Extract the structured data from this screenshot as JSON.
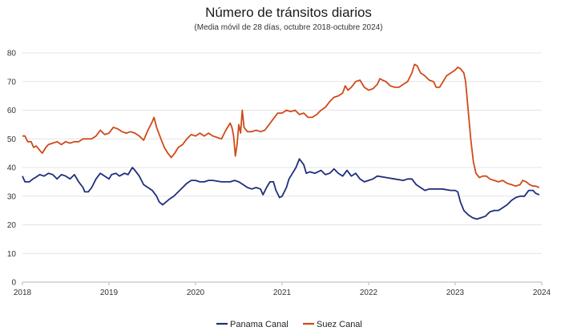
{
  "chart_data": {
    "type": "line",
    "title": "Número de tránsitos diarios",
    "subtitle": "(Media móvil de 28 días, octubre 2018-octubre 2024)",
    "xlabel": "",
    "ylabel": "",
    "xlim": [
      2018,
      2024
    ],
    "ylim": [
      0,
      80
    ],
    "x_ticks": [
      "2018",
      "2019",
      "2020",
      "2021",
      "2022",
      "2023",
      "2024"
    ],
    "y_ticks": [
      "0",
      "10",
      "20",
      "30",
      "40",
      "50",
      "60",
      "70",
      "80"
    ],
    "grid": "horizontal",
    "legend_position": "bottom",
    "series": [
      {
        "name": "Panama Canal",
        "color": "#1f2f7a",
        "points": [
          [
            2018.0,
            37
          ],
          [
            2018.03,
            35
          ],
          [
            2018.08,
            35
          ],
          [
            2018.12,
            36
          ],
          [
            2018.15,
            36.5
          ],
          [
            2018.2,
            37.5
          ],
          [
            2018.25,
            37
          ],
          [
            2018.3,
            38
          ],
          [
            2018.35,
            37.5
          ],
          [
            2018.4,
            36
          ],
          [
            2018.45,
            37.5
          ],
          [
            2018.5,
            37
          ],
          [
            2018.55,
            36
          ],
          [
            2018.6,
            37.5
          ],
          [
            2018.65,
            35
          ],
          [
            2018.7,
            33
          ],
          [
            2018.72,
            31.5
          ],
          [
            2018.76,
            31.5
          ],
          [
            2018.8,
            33
          ],
          [
            2018.85,
            36
          ],
          [
            2018.9,
            38
          ],
          [
            2018.95,
            37
          ],
          [
            2019.0,
            36
          ],
          [
            2019.03,
            37.5
          ],
          [
            2019.08,
            38
          ],
          [
            2019.12,
            37
          ],
          [
            2019.18,
            38
          ],
          [
            2019.22,
            37.5
          ],
          [
            2019.27,
            40
          ],
          [
            2019.3,
            39
          ],
          [
            2019.35,
            37
          ],
          [
            2019.4,
            34
          ],
          [
            2019.45,
            33
          ],
          [
            2019.5,
            32
          ],
          [
            2019.55,
            30
          ],
          [
            2019.58,
            28
          ],
          [
            2019.62,
            27
          ],
          [
            2019.66,
            28
          ],
          [
            2019.7,
            29
          ],
          [
            2019.75,
            30
          ],
          [
            2019.8,
            31.5
          ],
          [
            2019.85,
            33
          ],
          [
            2019.9,
            34.5
          ],
          [
            2019.95,
            35.5
          ],
          [
            2020.0,
            35.5
          ],
          [
            2020.05,
            35
          ],
          [
            2020.1,
            35
          ],
          [
            2020.15,
            35.5
          ],
          [
            2020.2,
            35.5
          ],
          [
            2020.3,
            35
          ],
          [
            2020.4,
            35
          ],
          [
            2020.45,
            35.5
          ],
          [
            2020.5,
            35
          ],
          [
            2020.55,
            34
          ],
          [
            2020.6,
            33
          ],
          [
            2020.65,
            32.5
          ],
          [
            2020.7,
            33
          ],
          [
            2020.75,
            32.5
          ],
          [
            2020.78,
            30.5
          ],
          [
            2020.82,
            33
          ],
          [
            2020.86,
            35
          ],
          [
            2020.9,
            35
          ],
          [
            2020.93,
            32
          ],
          [
            2020.97,
            29.5
          ],
          [
            2021.0,
            30
          ],
          [
            2021.05,
            33
          ],
          [
            2021.08,
            36
          ],
          [
            2021.12,
            38
          ],
          [
            2021.16,
            40
          ],
          [
            2021.2,
            43
          ],
          [
            2021.25,
            41
          ],
          [
            2021.28,
            38
          ],
          [
            2021.32,
            38.5
          ],
          [
            2021.38,
            38
          ],
          [
            2021.45,
            39
          ],
          [
            2021.5,
            37.5
          ],
          [
            2021.55,
            38
          ],
          [
            2021.6,
            39.5
          ],
          [
            2021.65,
            38
          ],
          [
            2021.7,
            37
          ],
          [
            2021.75,
            39
          ],
          [
            2021.8,
            37
          ],
          [
            2021.85,
            38
          ],
          [
            2021.9,
            36
          ],
          [
            2021.95,
            35
          ],
          [
            2022.0,
            35.5
          ],
          [
            2022.05,
            36
          ],
          [
            2022.1,
            37
          ],
          [
            2022.2,
            36.5
          ],
          [
            2022.3,
            36
          ],
          [
            2022.4,
            35.5
          ],
          [
            2022.45,
            36
          ],
          [
            2022.5,
            36
          ],
          [
            2022.55,
            34
          ],
          [
            2022.6,
            33
          ],
          [
            2022.65,
            32
          ],
          [
            2022.7,
            32.5
          ],
          [
            2022.75,
            32.5
          ],
          [
            2022.85,
            32.5
          ],
          [
            2022.95,
            32
          ],
          [
            2023.0,
            32
          ],
          [
            2023.03,
            31.5
          ],
          [
            2023.06,
            28
          ],
          [
            2023.1,
            25
          ],
          [
            2023.15,
            23.5
          ],
          [
            2023.2,
            22.5
          ],
          [
            2023.25,
            22
          ],
          [
            2023.3,
            22.5
          ],
          [
            2023.35,
            23
          ],
          [
            2023.4,
            24.5
          ],
          [
            2023.45,
            25
          ],
          [
            2023.5,
            25
          ],
          [
            2023.55,
            26
          ],
          [
            2023.6,
            27
          ],
          [
            2023.65,
            28.5
          ],
          [
            2023.7,
            29.5
          ],
          [
            2023.75,
            30
          ],
          [
            2023.8,
            30
          ],
          [
            2023.85,
            32
          ],
          [
            2023.9,
            32
          ],
          [
            2023.93,
            31
          ],
          [
            2023.97,
            30.5
          ]
        ]
      },
      {
        "name": "Suez Canal",
        "color": "#d04a1a",
        "points": [
          [
            2018.0,
            51
          ],
          [
            2018.03,
            51
          ],
          [
            2018.06,
            49
          ],
          [
            2018.1,
            49
          ],
          [
            2018.13,
            47
          ],
          [
            2018.16,
            47.5
          ],
          [
            2018.2,
            46
          ],
          [
            2018.23,
            45
          ],
          [
            2018.27,
            47
          ],
          [
            2018.3,
            48
          ],
          [
            2018.35,
            48.5
          ],
          [
            2018.4,
            49
          ],
          [
            2018.45,
            48
          ],
          [
            2018.5,
            49
          ],
          [
            2018.55,
            48.5
          ],
          [
            2018.6,
            49
          ],
          [
            2018.65,
            49
          ],
          [
            2018.7,
            50
          ],
          [
            2018.75,
            50
          ],
          [
            2018.8,
            50
          ],
          [
            2018.85,
            51
          ],
          [
            2018.9,
            53
          ],
          [
            2018.95,
            51.5
          ],
          [
            2019.0,
            52
          ],
          [
            2019.05,
            54
          ],
          [
            2019.1,
            53.5
          ],
          [
            2019.15,
            52.5
          ],
          [
            2019.2,
            52
          ],
          [
            2019.25,
            52.5
          ],
          [
            2019.3,
            52
          ],
          [
            2019.35,
            51
          ],
          [
            2019.4,
            49.5
          ],
          [
            2019.45,
            53
          ],
          [
            2019.5,
            56
          ],
          [
            2019.52,
            57.5
          ],
          [
            2019.55,
            54
          ],
          [
            2019.6,
            50
          ],
          [
            2019.64,
            47
          ],
          [
            2019.68,
            45
          ],
          [
            2019.72,
            43.5
          ],
          [
            2019.76,
            45
          ],
          [
            2019.8,
            47
          ],
          [
            2019.85,
            48
          ],
          [
            2019.9,
            50
          ],
          [
            2019.95,
            51.5
          ],
          [
            2020.0,
            51
          ],
          [
            2020.05,
            52
          ],
          [
            2020.1,
            51
          ],
          [
            2020.15,
            52
          ],
          [
            2020.2,
            51
          ],
          [
            2020.25,
            50.5
          ],
          [
            2020.3,
            50
          ],
          [
            2020.35,
            53
          ],
          [
            2020.4,
            55.5
          ],
          [
            2020.42,
            54
          ],
          [
            2020.44,
            51
          ],
          [
            2020.46,
            44
          ],
          [
            2020.48,
            48
          ],
          [
            2020.5,
            55
          ],
          [
            2020.52,
            52
          ],
          [
            2020.54,
            60
          ],
          [
            2020.56,
            54
          ],
          [
            2020.6,
            52.5
          ],
          [
            2020.65,
            52.5
          ],
          [
            2020.7,
            53
          ],
          [
            2020.75,
            52.5
          ],
          [
            2020.8,
            53
          ],
          [
            2020.85,
            55
          ],
          [
            2020.9,
            57
          ],
          [
            2020.95,
            59
          ],
          [
            2021.0,
            59
          ],
          [
            2021.05,
            60
          ],
          [
            2021.1,
            59.5
          ],
          [
            2021.15,
            60
          ],
          [
            2021.2,
            58.5
          ],
          [
            2021.25,
            59
          ],
          [
            2021.3,
            57.5
          ],
          [
            2021.35,
            57.5
          ],
          [
            2021.4,
            58.5
          ],
          [
            2021.45,
            60
          ],
          [
            2021.5,
            61
          ],
          [
            2021.55,
            63
          ],
          [
            2021.6,
            64.5
          ],
          [
            2021.65,
            65
          ],
          [
            2021.7,
            66
          ],
          [
            2021.73,
            68.5
          ],
          [
            2021.76,
            67
          ],
          [
            2021.8,
            68
          ],
          [
            2021.85,
            70
          ],
          [
            2021.9,
            70.5
          ],
          [
            2021.95,
            68
          ],
          [
            2022.0,
            67
          ],
          [
            2022.05,
            67.5
          ],
          [
            2022.1,
            69
          ],
          [
            2022.13,
            71
          ],
          [
            2022.16,
            70.5
          ],
          [
            2022.2,
            70
          ],
          [
            2022.25,
            68.5
          ],
          [
            2022.3,
            68
          ],
          [
            2022.35,
            68
          ],
          [
            2022.4,
            69
          ],
          [
            2022.45,
            70
          ],
          [
            2022.5,
            73
          ],
          [
            2022.53,
            76
          ],
          [
            2022.56,
            75.5
          ],
          [
            2022.6,
            73
          ],
          [
            2022.65,
            72
          ],
          [
            2022.7,
            70.5
          ],
          [
            2022.75,
            70
          ],
          [
            2022.78,
            68
          ],
          [
            2022.82,
            68
          ],
          [
            2022.86,
            70
          ],
          [
            2022.9,
            72
          ],
          [
            2022.95,
            73
          ],
          [
            2023.0,
            74
          ],
          [
            2023.03,
            75
          ],
          [
            2023.06,
            74.5
          ],
          [
            2023.1,
            73
          ],
          [
            2023.12,
            70
          ],
          [
            2023.15,
            60
          ],
          [
            2023.18,
            50
          ],
          [
            2023.21,
            42
          ],
          [
            2023.24,
            38
          ],
          [
            2023.28,
            36.5
          ],
          [
            2023.32,
            37
          ],
          [
            2023.36,
            37
          ],
          [
            2023.4,
            36
          ],
          [
            2023.45,
            35.5
          ],
          [
            2023.5,
            35
          ],
          [
            2023.55,
            35.5
          ],
          [
            2023.6,
            34.5
          ],
          [
            2023.65,
            34
          ],
          [
            2023.7,
            33.5
          ],
          [
            2023.75,
            34
          ],
          [
            2023.78,
            35.5
          ],
          [
            2023.82,
            35
          ],
          [
            2023.86,
            34
          ],
          [
            2023.9,
            33.5
          ],
          [
            2023.93,
            33.5
          ],
          [
            2023.97,
            33
          ]
        ]
      }
    ]
  }
}
